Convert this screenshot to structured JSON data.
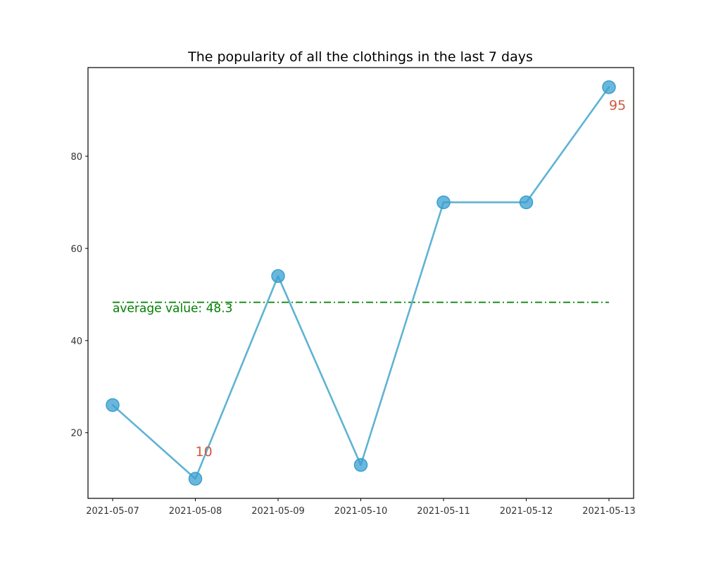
{
  "chart_data": {
    "type": "line",
    "title": "The popularity of all the clothings in the last 7 days",
    "xlabel": "",
    "ylabel": "",
    "categories": [
      "2021-05-07",
      "2021-05-08",
      "2021-05-09",
      "2021-05-10",
      "2021-05-11",
      "2021-05-12",
      "2021-05-13"
    ],
    "values": [
      26,
      10,
      54,
      13,
      70,
      70,
      95
    ],
    "ylim": [
      5.75,
      99.25
    ],
    "yticks": [
      20,
      40,
      60,
      80
    ],
    "yticks_labels": [
      "20",
      "40",
      "60",
      "80"
    ],
    "grid": false,
    "average": {
      "value": 48.3,
      "label": "average value: 48.3",
      "color": "#008000",
      "linestyle": "dash-dot"
    },
    "annotations": [
      {
        "category": "2021-05-08",
        "value": 10,
        "text": "10",
        "color": "#d0583f"
      },
      {
        "category": "2021-05-13",
        "value": 95,
        "text": "95",
        "color": "#d0583f"
      }
    ],
    "series_color": "#5fb3d3",
    "marker_color": "#3a9fd0"
  }
}
